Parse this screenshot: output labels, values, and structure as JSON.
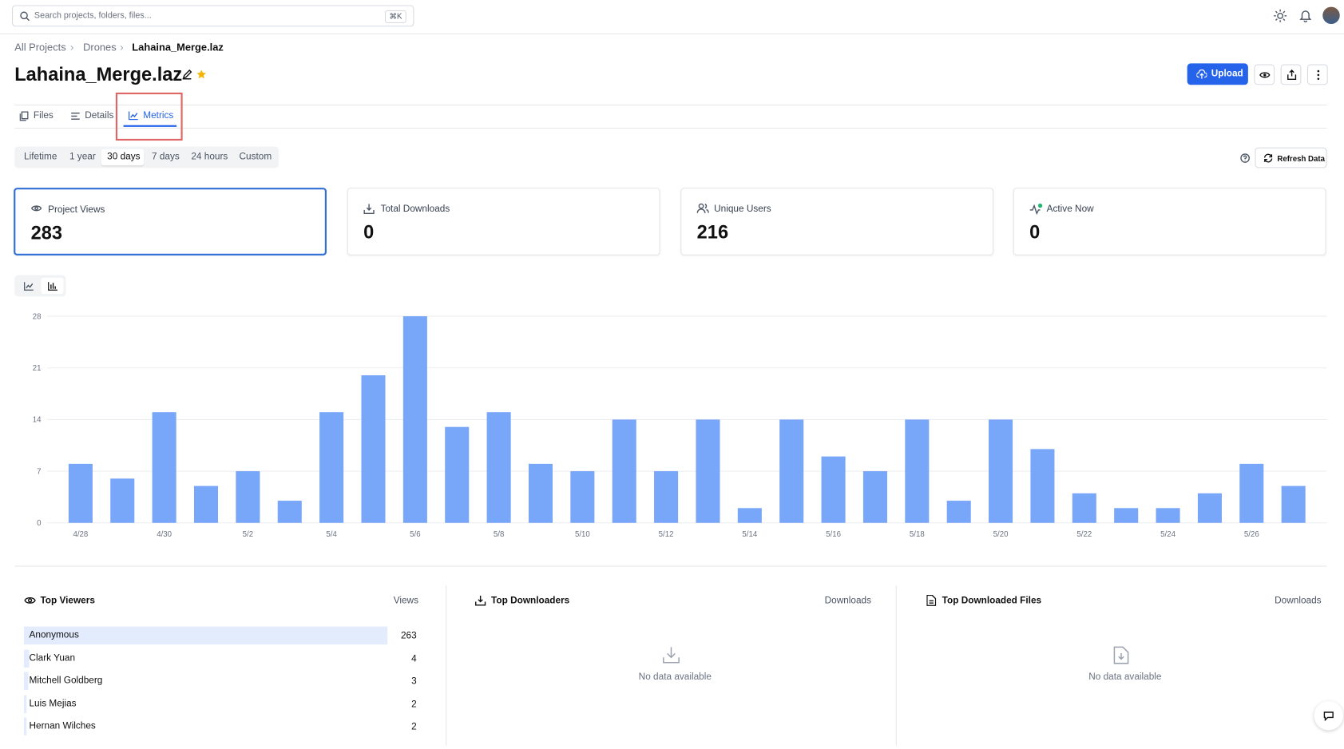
{
  "search": {
    "placeholder": "Search projects, folders, files...",
    "shortcut": "⌘K"
  },
  "breadcrumb": [
    "All Projects",
    "Drones",
    "Lahaina_Merge.laz"
  ],
  "title": "Lahaina_Merge.laz",
  "upload": "Upload",
  "tabs": [
    "Files",
    "Details",
    "Metrics"
  ],
  "ranges": [
    "Lifetime",
    "1 year",
    "30 days",
    "7 days",
    "24 hours",
    "Custom"
  ],
  "refresh": "Refresh Data",
  "stats": [
    {
      "label": "Project Views",
      "value": 283
    },
    {
      "label": "Total Downloads",
      "value": 0
    },
    {
      "label": "Unique Users",
      "value": 216
    },
    {
      "label": "Active Now",
      "value": 0
    }
  ],
  "chart_data": {
    "type": "bar",
    "color": "#78a6f8",
    "grid": true,
    "categories": [
      "4/28",
      null,
      "4/30",
      null,
      "5/2",
      null,
      "5/4",
      null,
      "5/6",
      null,
      "5/8",
      null,
      "5/10",
      null,
      "5/12",
      null,
      "5/14",
      null,
      "5/16",
      null,
      "5/18",
      null,
      "5/20",
      null,
      "5/22",
      null,
      "5/24",
      null,
      "5/26",
      null
    ],
    "values": [
      8,
      6,
      15,
      5,
      7,
      3,
      15,
      20,
      28,
      13,
      15,
      8,
      7,
      14,
      7,
      14,
      2,
      14,
      9,
      7,
      14,
      3,
      14,
      10,
      4,
      2,
      2,
      4,
      8,
      5
    ],
    "ylim": [
      0,
      28
    ],
    "yticks": [
      0,
      7,
      14,
      21,
      28
    ]
  },
  "top_viewers": {
    "title": "Top Viewers",
    "column": "Views",
    "rows": [
      {
        "name": "Anonymous",
        "views": 263
      },
      {
        "name": "Clark Yuan",
        "views": 4
      },
      {
        "name": "Mitchell Goldberg",
        "views": 3
      },
      {
        "name": "Luis Mejias",
        "views": 2
      },
      {
        "name": "Hernan Wilches",
        "views": 2
      }
    ]
  },
  "top_downloaders": {
    "title": "Top Downloaders",
    "column": "Downloads",
    "empty": "No data available"
  },
  "top_files": {
    "title": "Top Downloaded Files",
    "column": "Downloads",
    "empty": "No data available"
  }
}
